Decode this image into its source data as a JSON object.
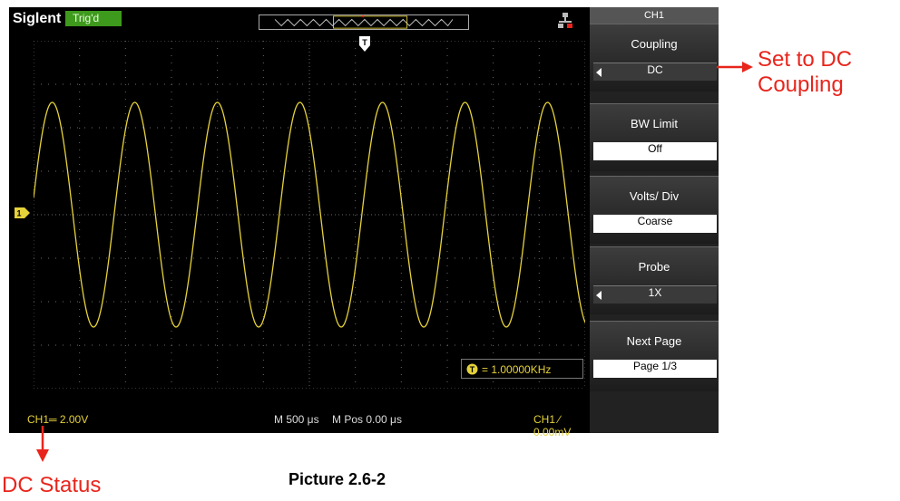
{
  "scope": {
    "brand": "Siglent",
    "trigger_status": "Trig'd",
    "trigger_marker": "T",
    "ch1_marker": "1",
    "frequency_readout": "= 1.00000KHz",
    "trace_color": "#e6d23a",
    "status_bar": {
      "ch1": "CH1═ 2.00V",
      "timebase": "M 500 μs",
      "mpos": "M Pos 0.00 μs",
      "trigger_level": "CH1 ∕ 0.00mV"
    }
  },
  "menu": {
    "title": "CH1",
    "items": [
      {
        "label": "Coupling",
        "value": "DC"
      },
      {
        "label": "BW Limit",
        "value": "Off"
      },
      {
        "label": "Volts/ Div",
        "value": "Coarse"
      },
      {
        "label": "Probe",
        "value": "1X"
      },
      {
        "label": "Next Page",
        "value": "Page 1/3"
      }
    ]
  },
  "annotations": {
    "coupling_callout": [
      "Set to DC",
      "Coupling"
    ],
    "dc_status_callout": "DC Status",
    "caption": "Picture 2.6-2"
  }
}
